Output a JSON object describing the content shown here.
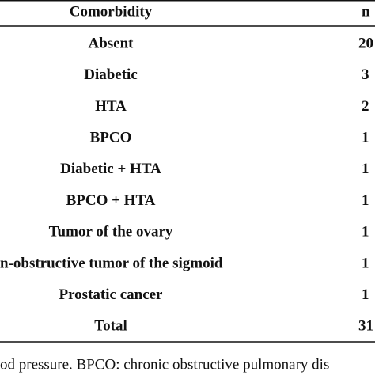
{
  "table": {
    "header": [
      "Comorbidity",
      "n"
    ],
    "rows": [
      [
        "Absent",
        "20"
      ],
      [
        "Diabetic",
        "3"
      ],
      [
        "HTA",
        "2"
      ],
      [
        "BPCO",
        "1"
      ],
      [
        "Diabetic + HTA",
        "1"
      ],
      [
        "BPCO + HTA",
        "1"
      ],
      [
        "Tumor of the ovary",
        "1"
      ],
      [
        "n-obstructive tumor of the sigmoid",
        "1"
      ],
      [
        "Prostatic cancer",
        "1"
      ],
      [
        "Total",
        "31"
      ]
    ],
    "footnote": "od pressure. BPCO: chronic obstructive pulmonary dis"
  }
}
